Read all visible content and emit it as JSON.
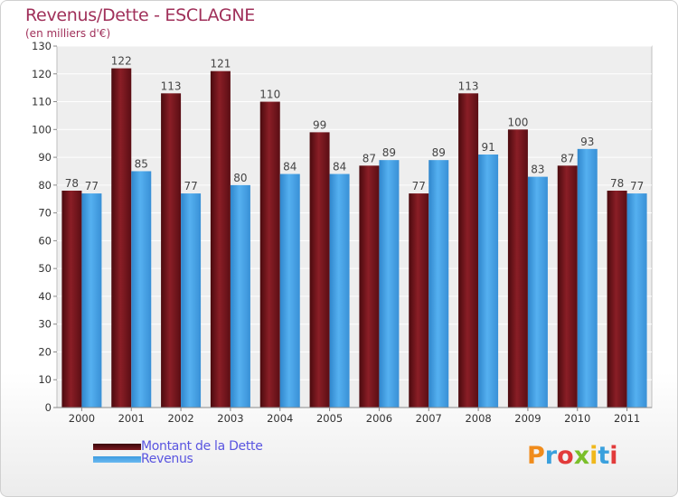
{
  "chart_data": {
    "type": "bar",
    "title": "Revenus/Dette - ESCLAGNE",
    "subtitle": "(en milliers d'€)",
    "categories": [
      "2000",
      "2001",
      "2002",
      "2003",
      "2004",
      "2005",
      "2006",
      "2007",
      "2008",
      "2009",
      "2010",
      "2011"
    ],
    "series": [
      {
        "name": "Montant de la Dette",
        "color": "#8a1c22",
        "values": [
          78,
          122,
          113,
          121,
          110,
          99,
          87,
          77,
          113,
          100,
          87,
          78
        ]
      },
      {
        "name": "Revenus",
        "color": "#4aa3e8",
        "values": [
          77,
          85,
          77,
          80,
          84,
          84,
          89,
          89,
          91,
          83,
          93,
          77
        ]
      }
    ],
    "yticks": [
      0,
      10,
      20,
      30,
      40,
      50,
      60,
      70,
      80,
      90,
      100,
      110,
      120,
      130
    ],
    "ylim": [
      0,
      130
    ],
    "grid": true,
    "legend_position": "bottom-left"
  },
  "branding": {
    "logo_text": "Proxiti"
  }
}
